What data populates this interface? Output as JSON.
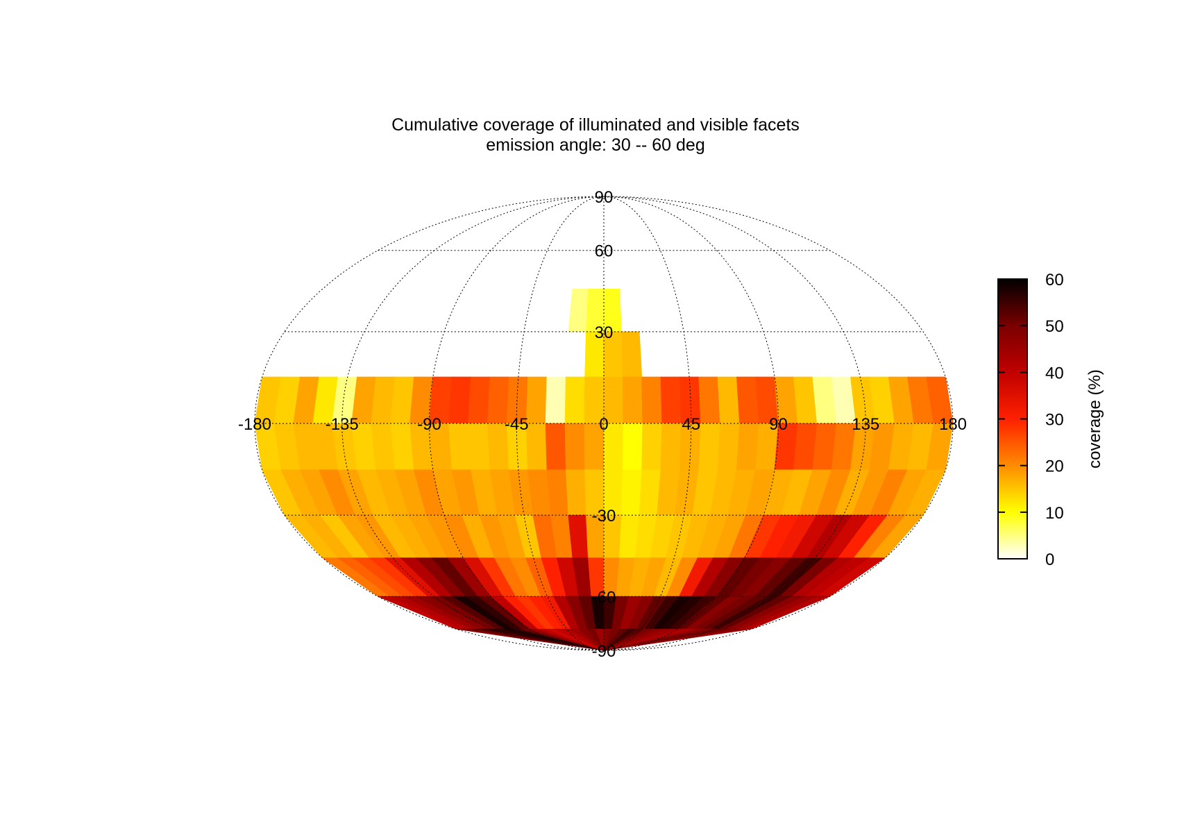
{
  "chart_data": {
    "type": "heatmap",
    "projection": "mollweide",
    "title": "Cumulative coverage of illuminated and visible facets",
    "subtitle": "emission angle: 30 -- 60 deg",
    "x_ticks": [
      "-180",
      "-135",
      "-90",
      "-45",
      "0",
      "45",
      "90",
      "135",
      "180"
    ],
    "y_ticks": [
      "90",
      "60",
      "30",
      "-30",
      "-60",
      "-90"
    ],
    "xlim": [
      -180,
      180
    ],
    "ylim": [
      -90,
      90
    ],
    "grid": true,
    "colorbar": {
      "label": "coverage (%)",
      "ticks": [
        "0",
        "10",
        "20",
        "30",
        "40",
        "50",
        "60"
      ],
      "range": [
        0,
        60
      ],
      "colormap": [
        "#ffffff",
        "#ffff00",
        "#ff8c00",
        "#ff2000",
        "#c00000",
        "#7a0000",
        "#000000"
      ],
      "placement": "right"
    },
    "lat_bands": [
      {
        "lat": [
          30,
          45
        ],
        "values": [
          null,
          null,
          null,
          null,
          null,
          null,
          null,
          null,
          null,
          null,
          null,
          null,
          null,
          null,
          null,
          null,
          5,
          8,
          9,
          null,
          null,
          null,
          null,
          null,
          null,
          null,
          null,
          null,
          null,
          null,
          null,
          null,
          null,
          null,
          null,
          null
        ]
      },
      {
        "lat": [
          15,
          30
        ],
        "values": [
          null,
          null,
          null,
          null,
          null,
          null,
          null,
          null,
          null,
          null,
          null,
          null,
          null,
          null,
          null,
          null,
          null,
          12,
          15,
          16,
          null,
          null,
          null,
          null,
          null,
          null,
          null,
          null,
          null,
          null,
          null,
          null,
          null,
          null,
          null,
          null
        ]
      },
      {
        "lat": [
          0,
          15
        ],
        "values": [
          15,
          14,
          18,
          12,
          5,
          18,
          16,
          15,
          20,
          27,
          28,
          26,
          24,
          22,
          18,
          3,
          13,
          15,
          16,
          18,
          21,
          27,
          28,
          22,
          16,
          25,
          26,
          18,
          15,
          5,
          3,
          15,
          14,
          18,
          22,
          24
        ]
      },
      {
        "lat": [
          -15,
          0
        ],
        "values": [
          14,
          15,
          16,
          16,
          15,
          14,
          15,
          14,
          16,
          17,
          15,
          15,
          16,
          14,
          16,
          25,
          20,
          18,
          12,
          10,
          14,
          16,
          17,
          15,
          16,
          18,
          17,
          28,
          26,
          24,
          22,
          18,
          19,
          17,
          16,
          18
        ]
      },
      {
        "lat": [
          -30,
          -15
        ],
        "values": [
          15,
          17,
          18,
          20,
          18,
          16,
          17,
          18,
          20,
          18,
          19,
          17,
          18,
          19,
          20,
          21,
          17,
          15,
          12,
          11,
          13,
          16,
          17,
          15,
          16,
          17,
          18,
          17,
          16,
          18,
          20,
          17,
          19,
          21,
          18,
          17
        ]
      },
      {
        "lat": [
          -45,
          -30
        ],
        "values": [
          16,
          17,
          15,
          18,
          19,
          16,
          17,
          18,
          19,
          20,
          17,
          19,
          18,
          15,
          23,
          21,
          35,
          18,
          15,
          12,
          13,
          14,
          15,
          16,
          17,
          18,
          22,
          28,
          30,
          32,
          38,
          42,
          38,
          30,
          21,
          18
        ]
      },
      {
        "lat": [
          -60,
          -45
        ],
        "values": [
          22,
          24,
          26,
          28,
          35,
          42,
          48,
          52,
          45,
          36,
          28,
          22,
          20,
          24,
          30,
          38,
          45,
          28,
          20,
          18,
          17,
          18,
          16,
          20,
          32,
          42,
          48,
          52,
          50,
          48,
          52,
          55,
          50,
          42,
          40,
          38
        ]
      },
      {
        "lat": [
          -75,
          -60
        ],
        "values": [
          40,
          42,
          45,
          48,
          50,
          53,
          58,
          56,
          52,
          40,
          30,
          28,
          30,
          32,
          42,
          48,
          52,
          58,
          55,
          50,
          45,
          48,
          52,
          55,
          58,
          57,
          55,
          52,
          48,
          50,
          52,
          55,
          52,
          48,
          45,
          42
        ]
      },
      {
        "lat": [
          -90,
          -75
        ],
        "values": [
          48,
          50,
          52,
          55,
          56,
          57,
          58,
          55,
          50,
          45,
          40,
          38,
          40,
          42,
          45,
          48,
          50,
          45,
          48,
          50,
          52,
          55,
          53,
          50,
          48,
          46,
          45,
          44,
          42,
          45,
          48,
          50,
          52,
          50,
          48,
          46
        ]
      }
    ]
  }
}
